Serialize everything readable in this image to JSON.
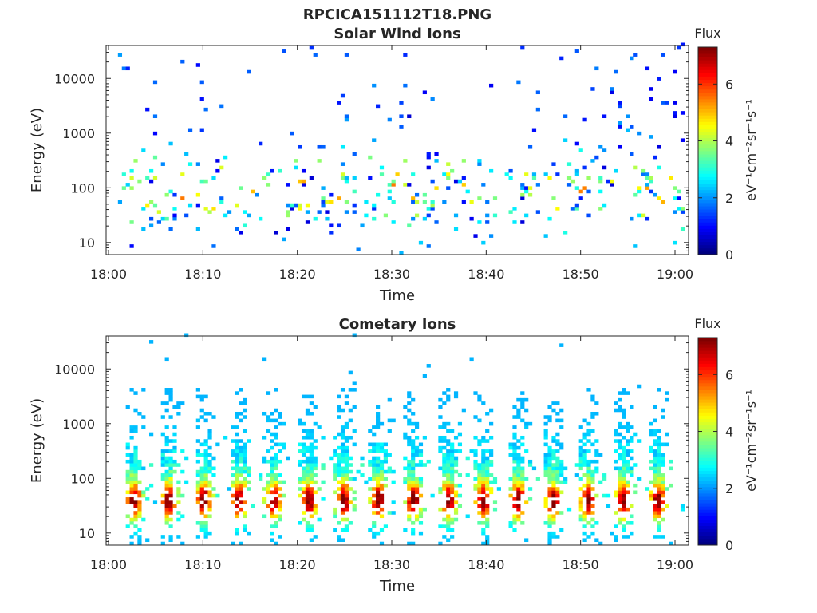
{
  "figure_title": "RPCICA151112T18.PNG",
  "chart_data": [
    {
      "type": "heatmap",
      "title": "Solar Wind Ions",
      "xlabel": "Time",
      "ylabel": "Energy (eV)",
      "x_ticks": [
        "18:00",
        "18:10",
        "18:20",
        "18:30",
        "18:40",
        "18:50",
        "19:00"
      ],
      "x_range": [
        "18:00",
        "19:02"
      ],
      "y_scale": "log",
      "y_ticks": [
        "10",
        "100",
        "1000",
        "10000"
      ],
      "y_range": [
        6,
        40000
      ],
      "colorbar": {
        "title": "Flux",
        "label": "eV⁻¹cm⁻²sr⁻¹s⁻¹",
        "ticks": [
          "0",
          "2",
          "4",
          "6"
        ],
        "range": [
          0,
          7.3
        ],
        "colormap": "jet"
      },
      "description_of_pattern": "sparse low-flux streaks between 10 and 1000 eV with isolated points up to 30000 eV"
    },
    {
      "type": "heatmap",
      "title": "Cometary Ions",
      "xlabel": "Time",
      "ylabel": "Energy (eV)",
      "x_ticks": [
        "18:00",
        "18:10",
        "18:20",
        "18:30",
        "18:40",
        "18:50",
        "19:00"
      ],
      "x_range": [
        "18:00",
        "19:02"
      ],
      "y_scale": "log",
      "y_ticks": [
        "10",
        "100",
        "1000",
        "10000"
      ],
      "y_range": [
        6,
        40000
      ],
      "colorbar": {
        "title": "Flux",
        "label": "eV⁻¹cm⁻²sr⁻¹s⁻¹",
        "ticks": [
          "0",
          "2",
          "4",
          "6"
        ],
        "range": [
          0,
          7.3
        ],
        "colormap": "jet"
      },
      "description_of_pattern": "periodic high-flux bursts peaking near 20-50 eV roughly every 4 minutes, extending up to about 1000 eV"
    }
  ]
}
